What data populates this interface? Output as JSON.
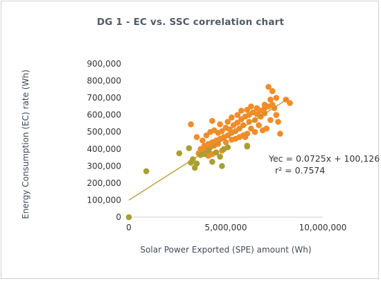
{
  "chart_data": {
    "type": "scatter",
    "title": "DG 1 - EC vs. SSC correlation chart",
    "xlabel": "Solar Power Exported (SPE) amount (Wh)",
    "ylabel": "Energy Consumption (EC) rate (Wh)",
    "xlim": [
      0,
      10000000
    ],
    "ylim": [
      0,
      900000
    ],
    "x_ticks": [
      0,
      5000000,
      10000000
    ],
    "x_tick_labels": [
      "0",
      "5,000,000",
      "10,000,000"
    ],
    "y_ticks": [
      0,
      100000,
      200000,
      300000,
      400000,
      500000,
      600000,
      700000,
      800000,
      900000
    ],
    "y_tick_labels": [
      "0",
      "100,000",
      "200,000",
      "300,000",
      "400,000",
      "500,000",
      "600,000",
      "700,000",
      "800,000",
      "900,000"
    ],
    "grid": false,
    "legend": "none",
    "trendline": {
      "type": "linear",
      "slope": 0.0725,
      "intercept": 100126,
      "x_range": [
        0,
        8200000
      ],
      "equation_label": "Yec = 0.0725x + 100,126",
      "r2_label": "r² = 0.7574",
      "color": "#b8962e"
    },
    "colors": {
      "points": "#f28c28",
      "points_alt": "#a8a032",
      "axis": "#cfcfcf"
    },
    "series": [
      {
        "color": "#f28c28",
        "points": [
          [
            3200000,
            545000
          ],
          [
            4300000,
            565000
          ],
          [
            4700000,
            545000
          ],
          [
            5100000,
            560000
          ],
          [
            5300000,
            585000
          ],
          [
            5600000,
            600000
          ],
          [
            5800000,
            625000
          ],
          [
            6100000,
            630000
          ],
          [
            6300000,
            650000
          ],
          [
            6600000,
            640000
          ],
          [
            7000000,
            660000
          ],
          [
            7200000,
            765000
          ],
          [
            7400000,
            740000
          ],
          [
            7600000,
            700000
          ],
          [
            8100000,
            690000
          ],
          [
            8300000,
            670000
          ],
          [
            7300000,
            690000
          ],
          [
            7000000,
            610000
          ],
          [
            6800000,
            590000
          ],
          [
            6500000,
            570000
          ],
          [
            6200000,
            560000
          ],
          [
            5900000,
            540000
          ],
          [
            5700000,
            520000
          ],
          [
            5500000,
            505000
          ],
          [
            5300000,
            495000
          ],
          [
            5100000,
            480000
          ],
          [
            4900000,
            470000
          ],
          [
            4700000,
            460000
          ],
          [
            4500000,
            450000
          ],
          [
            4300000,
            440000
          ],
          [
            4100000,
            430000
          ],
          [
            3900000,
            420000
          ],
          [
            3700000,
            400000
          ],
          [
            3500000,
            470000
          ],
          [
            3800000,
            450000
          ],
          [
            4000000,
            480000
          ],
          [
            4200000,
            500000
          ],
          [
            4400000,
            510000
          ],
          [
            4600000,
            495000
          ],
          [
            4800000,
            505000
          ],
          [
            5000000,
            525000
          ],
          [
            5200000,
            515000
          ],
          [
            5400000,
            540000
          ],
          [
            5600000,
            555000
          ],
          [
            5800000,
            575000
          ],
          [
            6000000,
            590000
          ],
          [
            6200000,
            600000
          ],
          [
            6400000,
            615000
          ],
          [
            6600000,
            605000
          ],
          [
            6800000,
            625000
          ],
          [
            7000000,
            640000
          ],
          [
            7200000,
            650000
          ],
          [
            7400000,
            660000
          ],
          [
            7600000,
            600000
          ],
          [
            7500000,
            640000
          ],
          [
            7300000,
            570000
          ],
          [
            7100000,
            520000
          ],
          [
            6900000,
            510000
          ],
          [
            6700000,
            540000
          ],
          [
            6500000,
            500000
          ],
          [
            6300000,
            520000
          ],
          [
            6100000,
            490000
          ],
          [
            5900000,
            480000
          ],
          [
            5700000,
            470000
          ],
          [
            5500000,
            460000
          ],
          [
            5300000,
            455000
          ],
          [
            4600000,
            430000
          ],
          [
            4400000,
            420000
          ],
          [
            4200000,
            410000
          ],
          [
            4000000,
            400000
          ],
          [
            3800000,
            385000
          ],
          [
            3600000,
            375000
          ],
          [
            4800000,
            390000
          ],
          [
            5000000,
            440000
          ],
          [
            6000000,
            470000
          ],
          [
            7800000,
            490000
          ],
          [
            4300000,
            370000
          ],
          [
            4100000,
            360000
          ],
          [
            6100000,
            420000
          ],
          [
            7700000,
            560000
          ]
        ]
      },
      {
        "color": "#a8a032",
        "points": [
          [
            0,
            0
          ],
          [
            900000,
            270000
          ],
          [
            2600000,
            375000
          ],
          [
            3100000,
            405000
          ],
          [
            3300000,
            340000
          ],
          [
            3400000,
            290000
          ],
          [
            3200000,
            320000
          ],
          [
            3500000,
            315000
          ],
          [
            3900000,
            370000
          ],
          [
            4300000,
            325000
          ],
          [
            4500000,
            380000
          ],
          [
            4700000,
            355000
          ],
          [
            4800000,
            300000
          ],
          [
            4900000,
            400000
          ],
          [
            5100000,
            410000
          ],
          [
            4100000,
            390000
          ],
          [
            6100000,
            415000
          ],
          [
            3700000,
            365000
          ]
        ]
      }
    ]
  }
}
